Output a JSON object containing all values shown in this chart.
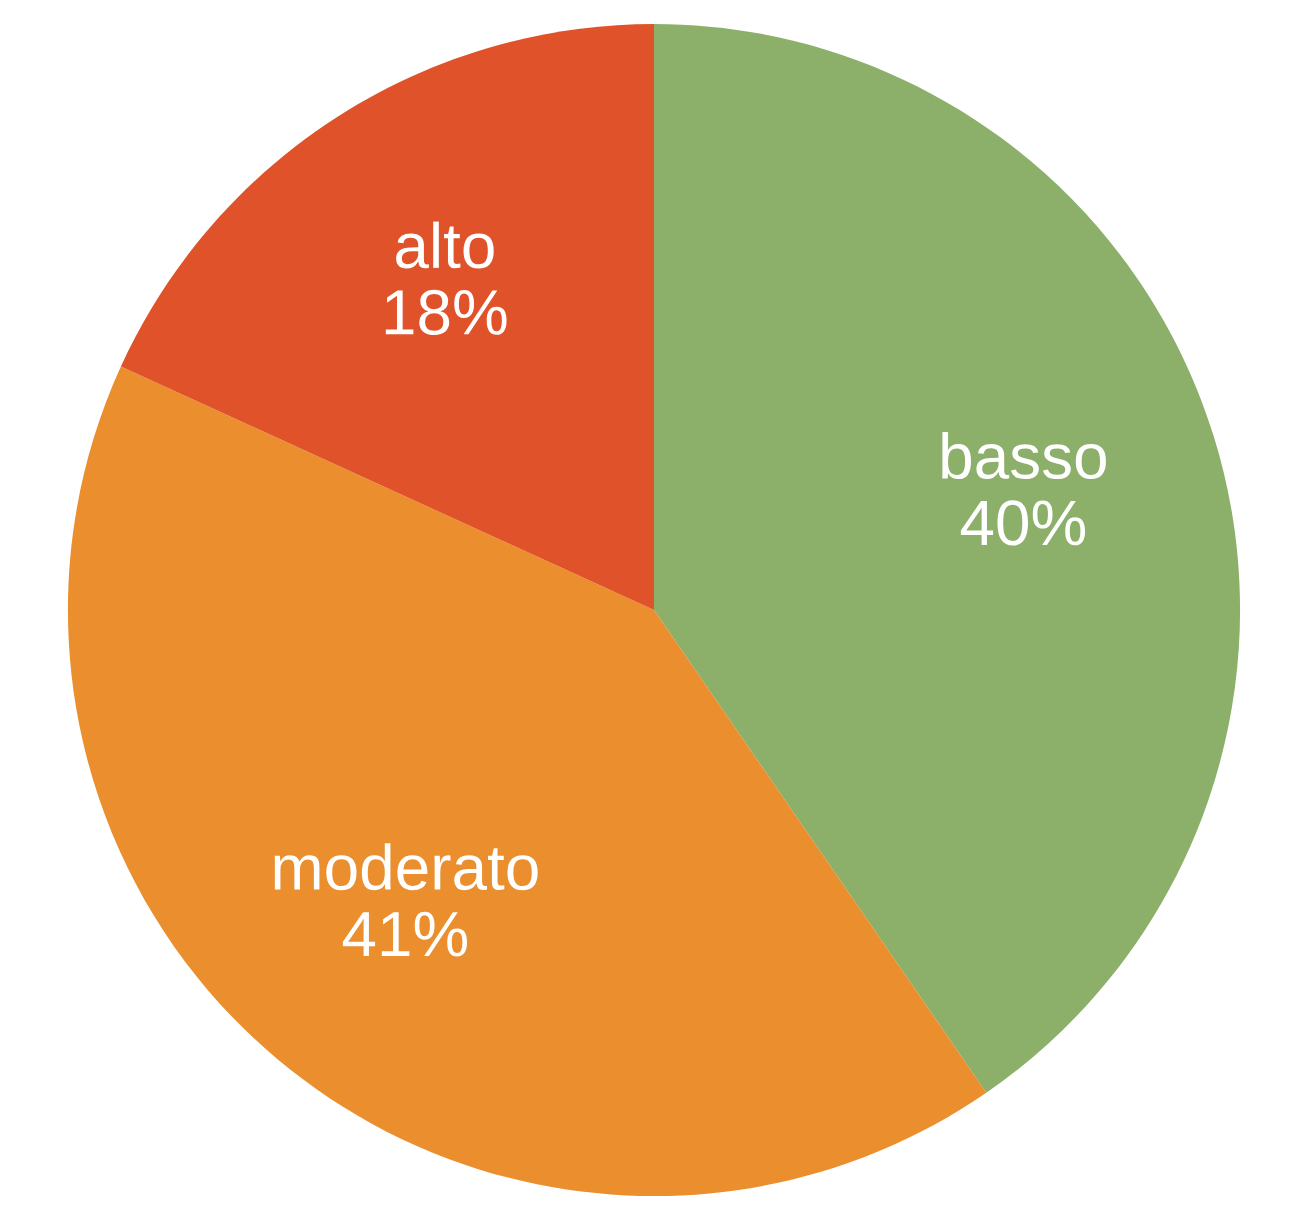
{
  "chart_data": {
    "type": "pie",
    "categories": [
      "basso",
      "moderato",
      "alto"
    ],
    "values": [
      40,
      41,
      18
    ],
    "colors": [
      "#8cb06a",
      "#ea8e2e",
      "#e0522a"
    ],
    "value_labels": [
      "40%",
      "41%",
      "18%"
    ]
  }
}
